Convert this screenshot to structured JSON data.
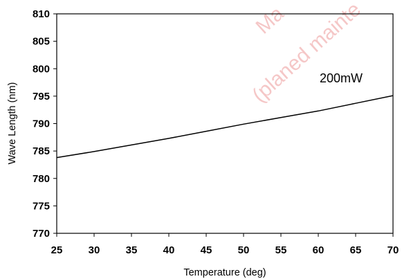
{
  "chart_data": {
    "type": "line",
    "title": "",
    "xlabel": "Temperature (deg)",
    "ylabel": "Wave Length (nm)",
    "xlim": [
      25,
      70
    ],
    "ylim": [
      770,
      810
    ],
    "xticks": [
      "25",
      "30",
      "35",
      "40",
      "45",
      "50",
      "55",
      "60",
      "65",
      "70"
    ],
    "yticks": [
      "810",
      "805",
      "800",
      "795",
      "790",
      "785",
      "780",
      "775",
      "770"
    ],
    "grid": false,
    "series": [
      {
        "name": "200mW",
        "color": "#000000",
        "x": [
          25,
          30,
          35,
          40,
          45,
          50,
          55,
          60,
          65,
          70
        ],
        "y": [
          783.8,
          784.9,
          786.1,
          787.3,
          788.6,
          789.9,
          791.1,
          792.3,
          793.7,
          795.1
        ]
      }
    ],
    "annotations": [
      "200mW"
    ]
  },
  "watermark": {
    "lines": [
      "Ma",
      "(planed mainte"
    ]
  }
}
